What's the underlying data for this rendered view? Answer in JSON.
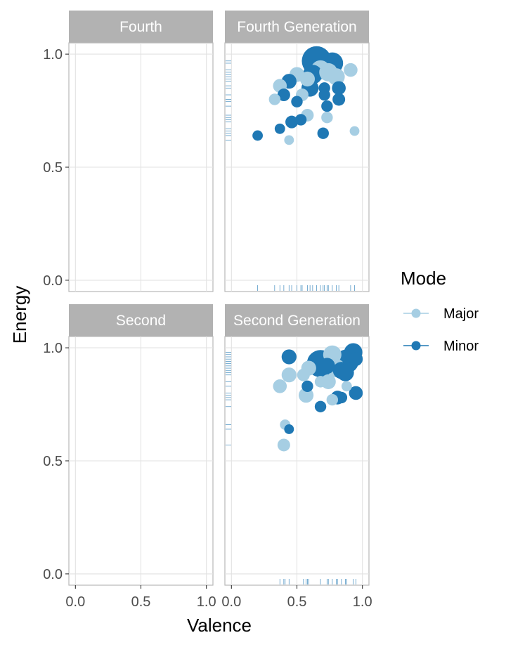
{
  "chart_data": {
    "type": "scatter",
    "xlabel": "Valence",
    "ylabel": "Energy",
    "xlim": [
      -0.05,
      1.05
    ],
    "ylim": [
      -0.05,
      1.05
    ],
    "x_ticks": [
      "0.0",
      "0.5",
      "1.0"
    ],
    "y_ticks": [
      "0.0",
      "0.5",
      "1.0"
    ],
    "grid": true,
    "legend": {
      "title": "Mode",
      "placement": "right",
      "entries": [
        {
          "label": "Major",
          "color": "#a6cee3"
        },
        {
          "label": "Minor",
          "color": "#1f78b4"
        }
      ]
    },
    "panels": [
      {
        "title": "Fourth",
        "points": [],
        "rug_x": [],
        "rug_y": []
      },
      {
        "title": "Fourth Generation",
        "points": [
          {
            "x": 0.65,
            "y": 0.97,
            "mode": "Minor",
            "size": 1.0
          },
          {
            "x": 0.77,
            "y": 0.96,
            "mode": "Minor",
            "size": 0.65
          },
          {
            "x": 0.68,
            "y": 0.93,
            "mode": "Major",
            "size": 0.55
          },
          {
            "x": 0.74,
            "y": 0.92,
            "mode": "Major",
            "size": 0.5
          },
          {
            "x": 0.62,
            "y": 0.91,
            "mode": "Minor",
            "size": 0.55
          },
          {
            "x": 0.5,
            "y": 0.91,
            "mode": "Major",
            "size": 0.35
          },
          {
            "x": 0.91,
            "y": 0.93,
            "mode": "Major",
            "size": 0.3
          },
          {
            "x": 0.8,
            "y": 0.9,
            "mode": "Major",
            "size": 0.45
          },
          {
            "x": 0.58,
            "y": 0.89,
            "mode": "Major",
            "size": 0.35
          },
          {
            "x": 0.44,
            "y": 0.88,
            "mode": "Minor",
            "size": 0.35
          },
          {
            "x": 0.37,
            "y": 0.86,
            "mode": "Major",
            "size": 0.3
          },
          {
            "x": 0.6,
            "y": 0.85,
            "mode": "Minor",
            "size": 0.45
          },
          {
            "x": 0.71,
            "y": 0.85,
            "mode": "Minor",
            "size": 0.2
          },
          {
            "x": 0.82,
            "y": 0.85,
            "mode": "Minor",
            "size": 0.3
          },
          {
            "x": 0.4,
            "y": 0.82,
            "mode": "Minor",
            "size": 0.25
          },
          {
            "x": 0.54,
            "y": 0.82,
            "mode": "Major",
            "size": 0.25
          },
          {
            "x": 0.71,
            "y": 0.82,
            "mode": "Minor",
            "size": 0.2
          },
          {
            "x": 0.33,
            "y": 0.8,
            "mode": "Major",
            "size": 0.2
          },
          {
            "x": 0.82,
            "y": 0.8,
            "mode": "Minor",
            "size": 0.25
          },
          {
            "x": 0.5,
            "y": 0.79,
            "mode": "Minor",
            "size": 0.2
          },
          {
            "x": 0.73,
            "y": 0.77,
            "mode": "Minor",
            "size": 0.2
          },
          {
            "x": 0.58,
            "y": 0.73,
            "mode": "Major",
            "size": 0.25
          },
          {
            "x": 0.73,
            "y": 0.72,
            "mode": "Major",
            "size": 0.2
          },
          {
            "x": 0.53,
            "y": 0.71,
            "mode": "Minor",
            "size": 0.2
          },
          {
            "x": 0.46,
            "y": 0.7,
            "mode": "Minor",
            "size": 0.25
          },
          {
            "x": 0.37,
            "y": 0.67,
            "mode": "Minor",
            "size": 0.15
          },
          {
            "x": 0.94,
            "y": 0.66,
            "mode": "Major",
            "size": 0.12
          },
          {
            "x": 0.2,
            "y": 0.64,
            "mode": "Minor",
            "size": 0.15
          },
          {
            "x": 0.7,
            "y": 0.65,
            "mode": "Minor",
            "size": 0.2
          },
          {
            "x": 0.44,
            "y": 0.62,
            "mode": "Major",
            "size": 0.12
          }
        ],
        "rug_x": [
          0.2,
          0.33,
          0.37,
          0.4,
          0.44,
          0.46,
          0.5,
          0.53,
          0.54,
          0.58,
          0.6,
          0.62,
          0.65,
          0.68,
          0.7,
          0.71,
          0.73,
          0.74,
          0.77,
          0.8,
          0.82,
          0.91,
          0.94
        ],
        "rug_y": [
          0.62,
          0.64,
          0.65,
          0.66,
          0.67,
          0.7,
          0.71,
          0.72,
          0.73,
          0.77,
          0.79,
          0.8,
          0.82,
          0.85,
          0.86,
          0.88,
          0.89,
          0.9,
          0.91,
          0.92,
          0.93,
          0.96,
          0.97
        ]
      },
      {
        "title": "Second",
        "points": [],
        "rug_x": [],
        "rug_y": []
      },
      {
        "title": "Second Generation",
        "points": [
          {
            "x": 0.68,
            "y": 0.93,
            "mode": "Minor",
            "size": 0.9
          },
          {
            "x": 0.77,
            "y": 0.97,
            "mode": "Major",
            "size": 0.5
          },
          {
            "x": 0.93,
            "y": 0.98,
            "mode": "Minor",
            "size": 0.5
          },
          {
            "x": 0.88,
            "y": 0.94,
            "mode": "Minor",
            "size": 0.75
          },
          {
            "x": 0.95,
            "y": 0.95,
            "mode": "Minor",
            "size": 0.3
          },
          {
            "x": 0.44,
            "y": 0.96,
            "mode": "Minor",
            "size": 0.35
          },
          {
            "x": 0.8,
            "y": 0.91,
            "mode": "Major",
            "size": 0.5
          },
          {
            "x": 0.59,
            "y": 0.91,
            "mode": "Major",
            "size": 0.35
          },
          {
            "x": 0.84,
            "y": 0.9,
            "mode": "Minor",
            "size": 0.45
          },
          {
            "x": 0.73,
            "y": 0.92,
            "mode": "Minor",
            "size": 0.4
          },
          {
            "x": 0.44,
            "y": 0.88,
            "mode": "Major",
            "size": 0.35
          },
          {
            "x": 0.55,
            "y": 0.88,
            "mode": "Major",
            "size": 0.25
          },
          {
            "x": 0.87,
            "y": 0.89,
            "mode": "Minor",
            "size": 0.45
          },
          {
            "x": 0.68,
            "y": 0.85,
            "mode": "Major",
            "size": 0.2
          },
          {
            "x": 0.74,
            "y": 0.85,
            "mode": "Major",
            "size": 0.35
          },
          {
            "x": 0.37,
            "y": 0.83,
            "mode": "Major",
            "size": 0.3
          },
          {
            "x": 0.58,
            "y": 0.83,
            "mode": "Minor",
            "size": 0.2
          },
          {
            "x": 0.88,
            "y": 0.83,
            "mode": "Major",
            "size": 0.15
          },
          {
            "x": 0.95,
            "y": 0.8,
            "mode": "Minor",
            "size": 0.3
          },
          {
            "x": 0.57,
            "y": 0.79,
            "mode": "Major",
            "size": 0.35
          },
          {
            "x": 0.81,
            "y": 0.78,
            "mode": "Minor",
            "size": 0.3
          },
          {
            "x": 0.84,
            "y": 0.78,
            "mode": "Minor",
            "size": 0.2
          },
          {
            "x": 0.77,
            "y": 0.77,
            "mode": "Major",
            "size": 0.2
          },
          {
            "x": 0.68,
            "y": 0.74,
            "mode": "Minor",
            "size": 0.2
          },
          {
            "x": 0.41,
            "y": 0.66,
            "mode": "Major",
            "size": 0.15
          },
          {
            "x": 0.44,
            "y": 0.64,
            "mode": "Minor",
            "size": 0.12
          },
          {
            "x": 0.4,
            "y": 0.57,
            "mode": "Major",
            "size": 0.25
          }
        ],
        "rug_x": [
          0.37,
          0.4,
          0.41,
          0.44,
          0.55,
          0.57,
          0.58,
          0.59,
          0.68,
          0.73,
          0.74,
          0.77,
          0.8,
          0.81,
          0.84,
          0.87,
          0.88,
          0.93,
          0.95
        ],
        "rug_y": [
          0.57,
          0.64,
          0.66,
          0.74,
          0.77,
          0.78,
          0.79,
          0.8,
          0.83,
          0.85,
          0.88,
          0.89,
          0.9,
          0.91,
          0.92,
          0.93,
          0.94,
          0.95,
          0.96,
          0.97,
          0.98
        ]
      }
    ]
  }
}
